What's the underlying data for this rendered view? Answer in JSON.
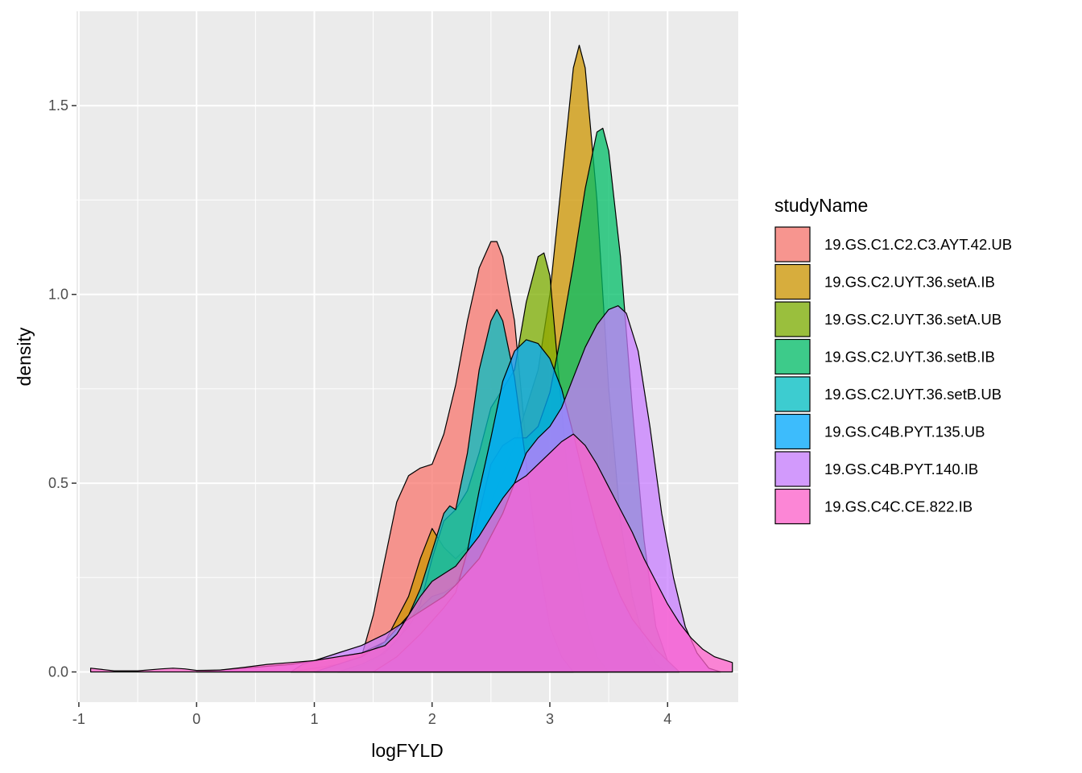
{
  "chart_data": {
    "type": "area",
    "subtype": "density",
    "title": "",
    "xlabel": "logFYLD",
    "ylabel": "density",
    "xlim": [
      -1.02,
      4.6
    ],
    "ylim": [
      -0.08,
      1.75
    ],
    "x_ticks": [
      -1,
      0,
      1,
      2,
      3,
      4
    ],
    "x_tick_labels": [
      "-1",
      "0",
      "1",
      "2",
      "3",
      "4"
    ],
    "y_ticks": [
      0.0,
      0.5,
      1.0,
      1.5
    ],
    "y_tick_labels": [
      "0.0",
      "0.5",
      "1.0",
      "1.5"
    ],
    "grid": true,
    "panel_background": "#EBEBEB",
    "fill_alpha": 0.75,
    "legend": {
      "title": "studyName",
      "position": "right"
    },
    "series": [
      {
        "name": "19.GS.C1.C2.C3.AYT.42.UB",
        "color": "#F8766D",
        "points": [
          [
            0.8,
            0.0
          ],
          [
            1.0,
            0.01
          ],
          [
            1.2,
            0.02
          ],
          [
            1.4,
            0.04
          ],
          [
            1.5,
            0.15
          ],
          [
            1.6,
            0.3
          ],
          [
            1.7,
            0.45
          ],
          [
            1.8,
            0.52
          ],
          [
            1.9,
            0.54
          ],
          [
            2.0,
            0.55
          ],
          [
            2.1,
            0.63
          ],
          [
            2.2,
            0.76
          ],
          [
            2.3,
            0.93
          ],
          [
            2.4,
            1.07
          ],
          [
            2.5,
            1.14
          ],
          [
            2.55,
            1.14
          ],
          [
            2.6,
            1.1
          ],
          [
            2.7,
            0.93
          ],
          [
            2.8,
            0.6
          ],
          [
            2.9,
            0.28
          ],
          [
            3.0,
            0.08
          ],
          [
            3.1,
            0.02
          ],
          [
            3.2,
            0.0
          ]
        ]
      },
      {
        "name": "19.GS.C2.UYT.36.setA.IB",
        "color": "#CD9600",
        "points": [
          [
            0.8,
            0.0
          ],
          [
            0.9,
            0.02
          ],
          [
            1.0,
            0.03
          ],
          [
            1.2,
            0.04
          ],
          [
            1.4,
            0.05
          ],
          [
            1.6,
            0.08
          ],
          [
            1.8,
            0.2
          ],
          [
            1.9,
            0.3
          ],
          [
            2.0,
            0.38
          ],
          [
            2.1,
            0.33
          ],
          [
            2.2,
            0.3
          ],
          [
            2.4,
            0.36
          ],
          [
            2.5,
            0.45
          ],
          [
            2.7,
            0.6
          ],
          [
            2.9,
            0.8
          ],
          [
            3.0,
            1.0
          ],
          [
            3.1,
            1.3
          ],
          [
            3.2,
            1.6
          ],
          [
            3.25,
            1.66
          ],
          [
            3.3,
            1.6
          ],
          [
            3.4,
            1.25
          ],
          [
            3.5,
            0.75
          ],
          [
            3.6,
            0.4
          ],
          [
            3.7,
            0.2
          ],
          [
            3.8,
            0.08
          ],
          [
            3.9,
            0.02
          ],
          [
            4.0,
            0.0
          ]
        ]
      },
      {
        "name": "19.GS.C2.UYT.36.setA.UB",
        "color": "#7CAE00",
        "points": [
          [
            1.3,
            0.0
          ],
          [
            1.5,
            0.03
          ],
          [
            1.7,
            0.08
          ],
          [
            1.9,
            0.18
          ],
          [
            2.0,
            0.3
          ],
          [
            2.1,
            0.4
          ],
          [
            2.2,
            0.43
          ],
          [
            2.3,
            0.48
          ],
          [
            2.4,
            0.58
          ],
          [
            2.5,
            0.7
          ],
          [
            2.6,
            0.75
          ],
          [
            2.7,
            0.8
          ],
          [
            2.8,
            0.98
          ],
          [
            2.9,
            1.1
          ],
          [
            2.95,
            1.11
          ],
          [
            3.0,
            1.05
          ],
          [
            3.1,
            0.7
          ],
          [
            3.2,
            0.35
          ],
          [
            3.3,
            0.15
          ],
          [
            3.4,
            0.04
          ],
          [
            3.5,
            0.0
          ]
        ]
      },
      {
        "name": "19.GS.C2.UYT.36.setB.IB",
        "color": "#00BE67",
        "points": [
          [
            1.2,
            0.0
          ],
          [
            1.4,
            0.02
          ],
          [
            1.6,
            0.05
          ],
          [
            1.8,
            0.12
          ],
          [
            1.9,
            0.17
          ],
          [
            2.0,
            0.2
          ],
          [
            2.1,
            0.21
          ],
          [
            2.2,
            0.23
          ],
          [
            2.3,
            0.3
          ],
          [
            2.4,
            0.42
          ],
          [
            2.5,
            0.55
          ],
          [
            2.6,
            0.6
          ],
          [
            2.7,
            0.62
          ],
          [
            2.8,
            0.62
          ],
          [
            2.9,
            0.65
          ],
          [
            3.0,
            0.74
          ],
          [
            3.1,
            0.9
          ],
          [
            3.2,
            1.08
          ],
          [
            3.3,
            1.28
          ],
          [
            3.4,
            1.43
          ],
          [
            3.45,
            1.44
          ],
          [
            3.5,
            1.38
          ],
          [
            3.6,
            1.1
          ],
          [
            3.7,
            0.7
          ],
          [
            3.8,
            0.35
          ],
          [
            3.9,
            0.12
          ],
          [
            4.0,
            0.03
          ],
          [
            4.1,
            0.0
          ]
        ]
      },
      {
        "name": "19.GS.C2.UYT.36.setB.UB",
        "color": "#00BFC4",
        "points": [
          [
            1.0,
            0.0
          ],
          [
            1.2,
            0.02
          ],
          [
            1.4,
            0.04
          ],
          [
            1.6,
            0.08
          ],
          [
            1.8,
            0.15
          ],
          [
            1.9,
            0.22
          ],
          [
            2.0,
            0.32
          ],
          [
            2.1,
            0.42
          ],
          [
            2.15,
            0.44
          ],
          [
            2.2,
            0.43
          ],
          [
            2.3,
            0.58
          ],
          [
            2.4,
            0.8
          ],
          [
            2.5,
            0.93
          ],
          [
            2.55,
            0.96
          ],
          [
            2.6,
            0.93
          ],
          [
            2.7,
            0.78
          ],
          [
            2.8,
            0.55
          ],
          [
            2.9,
            0.3
          ],
          [
            3.0,
            0.12
          ],
          [
            3.1,
            0.04
          ],
          [
            3.2,
            0.0
          ]
        ]
      },
      {
        "name": "19.GS.C4B.PYT.135.UB",
        "color": "#00A9FF",
        "points": [
          [
            1.5,
            0.0
          ],
          [
            1.7,
            0.04
          ],
          [
            1.9,
            0.1
          ],
          [
            2.1,
            0.17
          ],
          [
            2.2,
            0.21
          ],
          [
            2.3,
            0.32
          ],
          [
            2.4,
            0.48
          ],
          [
            2.5,
            0.62
          ],
          [
            2.6,
            0.77
          ],
          [
            2.7,
            0.85
          ],
          [
            2.8,
            0.88
          ],
          [
            2.9,
            0.87
          ],
          [
            3.0,
            0.83
          ],
          [
            3.1,
            0.75
          ],
          [
            3.2,
            0.63
          ],
          [
            3.3,
            0.5
          ],
          [
            3.4,
            0.38
          ],
          [
            3.5,
            0.28
          ],
          [
            3.6,
            0.2
          ],
          [
            3.7,
            0.14
          ],
          [
            3.8,
            0.1
          ],
          [
            3.9,
            0.06
          ],
          [
            4.0,
            0.03
          ],
          [
            4.1,
            0.0
          ]
        ]
      },
      {
        "name": "19.GS.C4B.PYT.140.IB",
        "color": "#C77CFF",
        "points": [
          [
            0.0,
            0.0
          ],
          [
            0.4,
            0.01
          ],
          [
            0.8,
            0.02
          ],
          [
            1.0,
            0.03
          ],
          [
            1.2,
            0.05
          ],
          [
            1.4,
            0.07
          ],
          [
            1.6,
            0.1
          ],
          [
            1.8,
            0.14
          ],
          [
            1.9,
            0.16
          ],
          [
            2.0,
            0.18
          ],
          [
            2.1,
            0.2
          ],
          [
            2.2,
            0.23
          ],
          [
            2.4,
            0.3
          ],
          [
            2.5,
            0.36
          ],
          [
            2.6,
            0.42
          ],
          [
            2.7,
            0.5
          ],
          [
            2.8,
            0.58
          ],
          [
            2.9,
            0.62
          ],
          [
            3.0,
            0.65
          ],
          [
            3.1,
            0.7
          ],
          [
            3.2,
            0.78
          ],
          [
            3.3,
            0.86
          ],
          [
            3.4,
            0.92
          ],
          [
            3.5,
            0.96
          ],
          [
            3.58,
            0.97
          ],
          [
            3.65,
            0.95
          ],
          [
            3.75,
            0.85
          ],
          [
            3.85,
            0.65
          ],
          [
            3.95,
            0.42
          ],
          [
            4.05,
            0.25
          ],
          [
            4.15,
            0.12
          ],
          [
            4.25,
            0.05
          ],
          [
            4.35,
            0.01
          ],
          [
            4.45,
            0.0
          ]
        ]
      },
      {
        "name": "19.GS.C4C.CE.822.IB",
        "color": "#FF61CC",
        "points": [
          [
            -0.9,
            0.01
          ],
          [
            -0.7,
            0.003
          ],
          [
            -0.5,
            0.003
          ],
          [
            -0.3,
            0.008
          ],
          [
            -0.2,
            0.01
          ],
          [
            -0.1,
            0.008
          ],
          [
            0.0,
            0.004
          ],
          [
            0.2,
            0.005
          ],
          [
            0.4,
            0.012
          ],
          [
            0.6,
            0.02
          ],
          [
            0.8,
            0.025
          ],
          [
            1.0,
            0.03
          ],
          [
            1.2,
            0.04
          ],
          [
            1.4,
            0.05
          ],
          [
            1.6,
            0.07
          ],
          [
            1.7,
            0.1
          ],
          [
            1.8,
            0.15
          ],
          [
            1.9,
            0.2
          ],
          [
            2.0,
            0.24
          ],
          [
            2.1,
            0.26
          ],
          [
            2.2,
            0.28
          ],
          [
            2.3,
            0.32
          ],
          [
            2.4,
            0.36
          ],
          [
            2.5,
            0.41
          ],
          [
            2.6,
            0.46
          ],
          [
            2.7,
            0.5
          ],
          [
            2.8,
            0.52
          ],
          [
            2.9,
            0.55
          ],
          [
            3.0,
            0.58
          ],
          [
            3.1,
            0.61
          ],
          [
            3.2,
            0.63
          ],
          [
            3.3,
            0.6
          ],
          [
            3.4,
            0.55
          ],
          [
            3.5,
            0.49
          ],
          [
            3.6,
            0.43
          ],
          [
            3.7,
            0.37
          ],
          [
            3.8,
            0.3
          ],
          [
            3.9,
            0.24
          ],
          [
            4.0,
            0.18
          ],
          [
            4.1,
            0.13
          ],
          [
            4.2,
            0.09
          ],
          [
            4.3,
            0.06
          ],
          [
            4.4,
            0.04
          ],
          [
            4.5,
            0.03
          ],
          [
            4.55,
            0.025
          ]
        ]
      }
    ]
  }
}
